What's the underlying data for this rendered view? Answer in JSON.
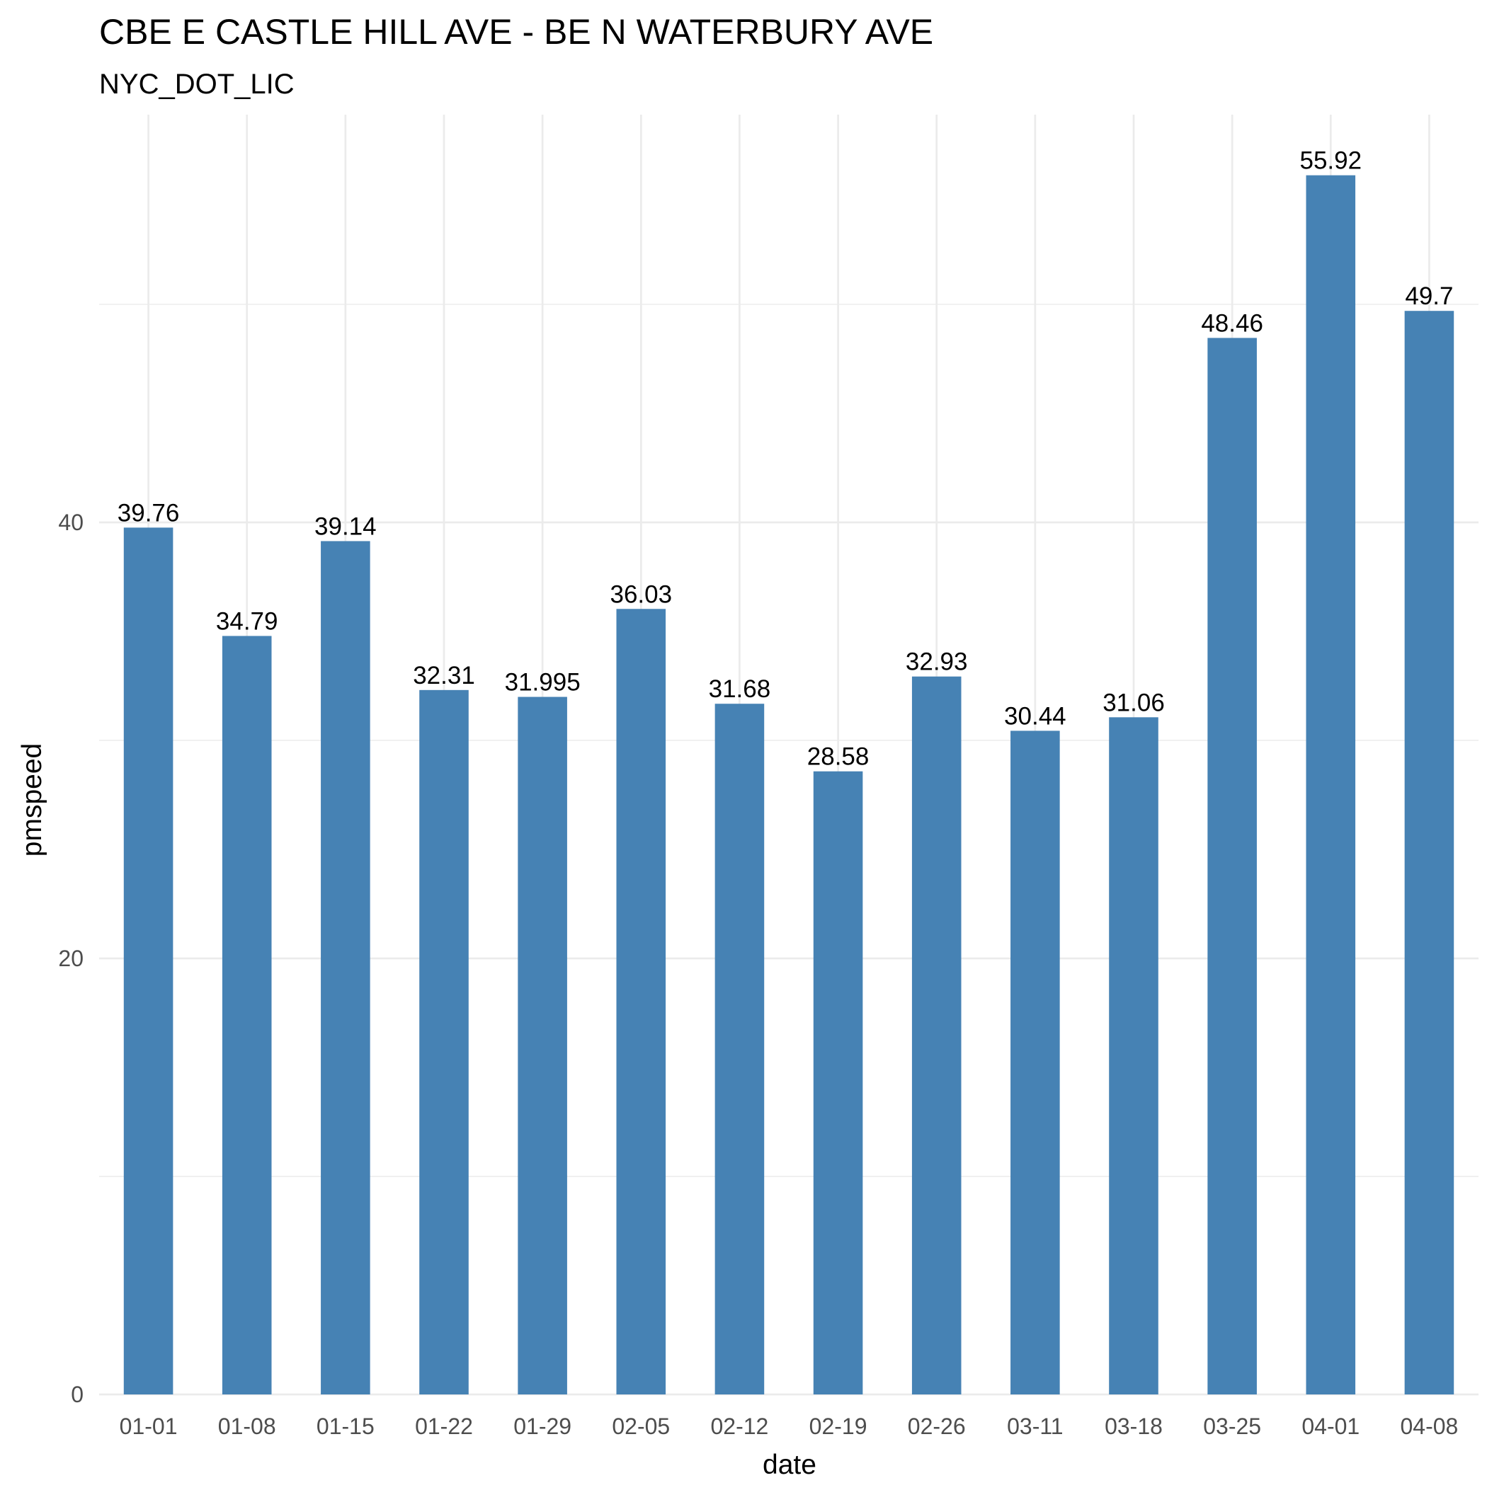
{
  "chart_data": {
    "type": "bar",
    "title": "CBE E CASTLE HILL AVE - BE N WATERBURY AVE",
    "subtitle": "NYC_DOT_LIC",
    "xlabel": "date",
    "ylabel": "pmspeed",
    "categories": [
      "01-01",
      "01-08",
      "01-15",
      "01-22",
      "01-29",
      "02-05",
      "02-12",
      "02-19",
      "02-26",
      "03-11",
      "03-18",
      "03-25",
      "04-01",
      "04-08"
    ],
    "values": [
      39.76,
      34.79,
      39.14,
      32.31,
      31.995,
      36.03,
      31.68,
      28.58,
      32.93,
      30.44,
      31.06,
      48.46,
      55.92,
      49.7
    ],
    "data_labels": [
      "39.76",
      "34.79",
      "39.14",
      "32.31",
      "31.995",
      "36.03",
      "31.68",
      "28.58",
      "32.93",
      "30.44",
      "31.06",
      "48.46",
      "55.92",
      "49.7"
    ],
    "y_ticks": [
      0,
      20,
      40
    ],
    "y_tick_labels": [
      "0",
      "20",
      "40"
    ],
    "ylim": [
      0,
      58.7
    ],
    "grid": true,
    "legend": "none",
    "bar_color": "#4682b4"
  }
}
